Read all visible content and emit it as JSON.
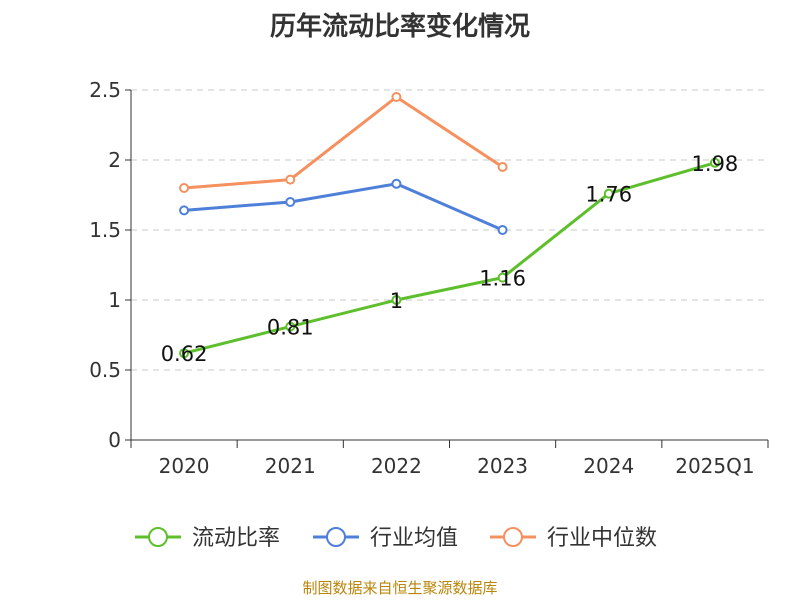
{
  "chart_data": {
    "type": "line",
    "title": "历年流动比率变化情况",
    "categories": [
      "2020",
      "2021",
      "2022",
      "2023",
      "2024",
      "2025Q1"
    ],
    "ylim": [
      0,
      2.5
    ],
    "yticks": [
      "0",
      "0.5",
      "1",
      "1.5",
      "2",
      "2.5"
    ],
    "grid": true,
    "legend_position": "bottom",
    "series": [
      {
        "name": "流动比率",
        "color": "#5dbf2b",
        "values": [
          0.62,
          0.81,
          1.0,
          1.16,
          1.76,
          1.98
        ],
        "labels": [
          "0.62",
          "0.81",
          "1",
          "1.16",
          "1.76",
          "1.98"
        ]
      },
      {
        "name": "行业均值",
        "color": "#4e7fd9",
        "values": [
          1.64,
          1.7,
          1.83,
          1.5,
          null,
          null
        ]
      },
      {
        "name": "行业中位数",
        "color": "#f5905f",
        "values": [
          1.8,
          1.86,
          2.45,
          1.95,
          null,
          null
        ]
      }
    ]
  },
  "footer": {
    "source": "制图数据来自恒生聚源数据库"
  }
}
